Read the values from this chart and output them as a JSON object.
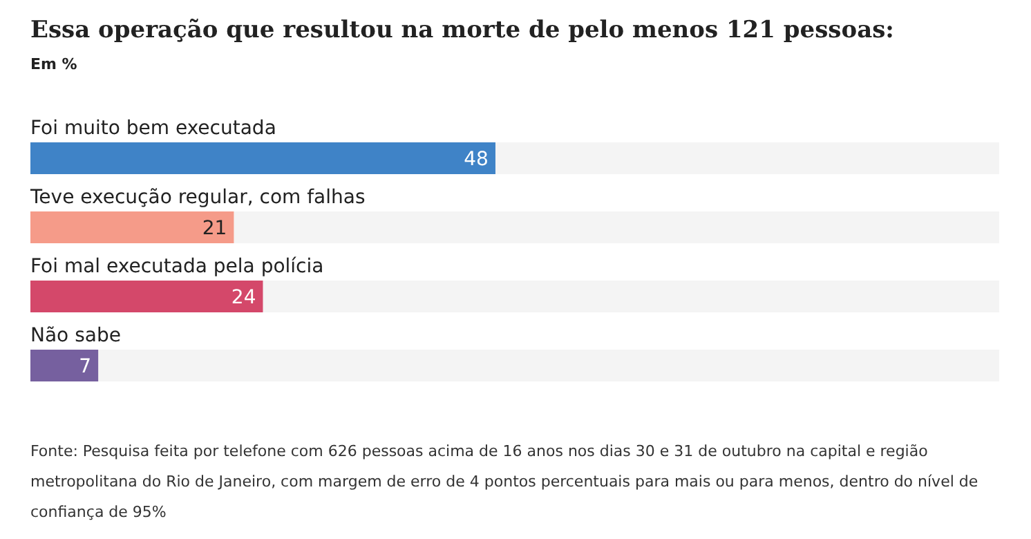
{
  "chart_data": {
    "type": "bar",
    "orientation": "horizontal",
    "title": "Essa operação que resultou na morte de pelo menos 121 pessoas:",
    "subtitle": "Em %",
    "categories": [
      "Foi muito bem executada",
      "Teve execução regular, com falhas",
      "Foi mal executada pela polícia",
      "Não sabe"
    ],
    "values": [
      48,
      21,
      24,
      7
    ],
    "colors": [
      "#3f83c7",
      "#f59b89",
      "#d4486a",
      "#76609f"
    ],
    "data_labels": true,
    "annotations": [
      "Fonte: Pesquisa feita por telefone com 626 pessoas acima de 16 anos nos dias 30 e 31 de outubro na capital e região metropolitana do Rio de Janeiro, com margem de erro de 4 pontos percentuais para mais ou para menos, dentro do nível de confiança de 95%"
    ]
  }
}
